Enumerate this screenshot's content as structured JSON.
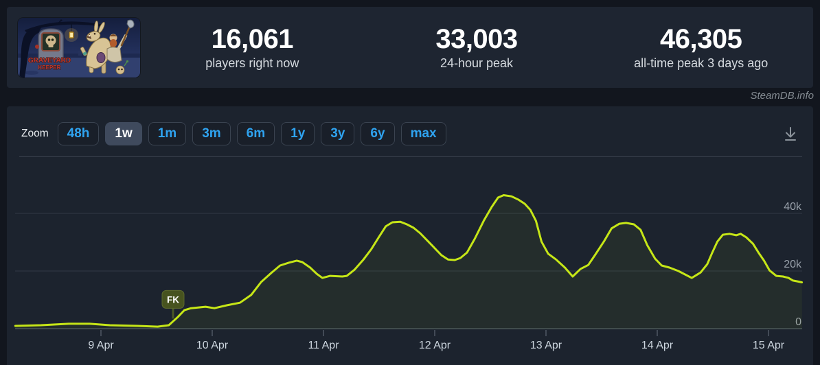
{
  "header": {
    "game": {
      "name": "Graveyard Keeper",
      "logo_lines": [
        "GRAVEYARD",
        "KEEPER"
      ]
    },
    "stats": [
      {
        "value": "16,061",
        "label": "players right now"
      },
      {
        "value": "33,003",
        "label": "24-hour peak"
      },
      {
        "value": "46,305",
        "label": "all-time peak 3 days ago"
      }
    ]
  },
  "watermark": "SteamDB.info",
  "toolbar": {
    "zoom_label": "Zoom",
    "ranges": [
      {
        "label": "48h",
        "active": false
      },
      {
        "label": "1w",
        "active": true
      },
      {
        "label": "1m",
        "active": false
      },
      {
        "label": "3m",
        "active": false
      },
      {
        "label": "6m",
        "active": false
      },
      {
        "label": "1y",
        "active": false
      },
      {
        "label": "3y",
        "active": false
      },
      {
        "label": "6y",
        "active": false
      },
      {
        "label": "max",
        "active": false
      }
    ]
  },
  "chart_data": {
    "type": "area",
    "series_name": "players",
    "title": "",
    "xlabel": "",
    "ylabel": "",
    "line_color": "#c6e617",
    "fill_color": "rgba(198,230,23,0.05)",
    "grid_color": "#323a46",
    "axis_color": "#454e5c",
    "tick_color": "#4e5764",
    "x_label_color": "#cdd6df",
    "y_label_color": "#99a1ab",
    "x_range_days": [
      -0.772,
      6.302
    ],
    "ylim": [
      0,
      57000
    ],
    "x_ticks": [
      {
        "day": 0,
        "label": "9 Apr"
      },
      {
        "day": 1,
        "label": "10 Apr"
      },
      {
        "day": 2,
        "label": "11 Apr"
      },
      {
        "day": 3,
        "label": "12 Apr"
      },
      {
        "day": 4,
        "label": "13 Apr"
      },
      {
        "day": 5,
        "label": "14 Apr"
      },
      {
        "day": 6,
        "label": "15 Apr"
      }
    ],
    "y_gridlines": [
      {
        "value": 0,
        "label": "0"
      },
      {
        "value": 20000,
        "label": "20k"
      },
      {
        "value": 40000,
        "label": "40k"
      }
    ],
    "flags": [
      {
        "day": 0.648,
        "label": "FK",
        "box_color": "#47531f",
        "stem_color": "#4b5826"
      }
    ],
    "points": [
      [
        -0.77,
        950
      ],
      [
        -0.54,
        1200
      ],
      [
        -0.29,
        1700
      ],
      [
        -0.1,
        1700
      ],
      [
        0.08,
        1200
      ],
      [
        0.33,
        950
      ],
      [
        0.51,
        700
      ],
      [
        0.61,
        1200
      ],
      [
        0.69,
        4000
      ],
      [
        0.75,
        6400
      ],
      [
        0.81,
        7100
      ],
      [
        0.94,
        7600
      ],
      [
        1.02,
        7100
      ],
      [
        1.13,
        8100
      ],
      [
        1.25,
        9000
      ],
      [
        1.35,
        11700
      ],
      [
        1.44,
        16200
      ],
      [
        1.53,
        19300
      ],
      [
        1.61,
        21900
      ],
      [
        1.69,
        22900
      ],
      [
        1.76,
        23600
      ],
      [
        1.81,
        23100
      ],
      [
        1.88,
        21200
      ],
      [
        1.94,
        19000
      ],
      [
        1.99,
        17600
      ],
      [
        2.06,
        18300
      ],
      [
        2.17,
        18100
      ],
      [
        2.21,
        18300
      ],
      [
        2.28,
        20500
      ],
      [
        2.36,
        24000
      ],
      [
        2.43,
        27600
      ],
      [
        2.5,
        31900
      ],
      [
        2.56,
        35500
      ],
      [
        2.62,
        36900
      ],
      [
        2.69,
        37100
      ],
      [
        2.75,
        36200
      ],
      [
        2.81,
        35000
      ],
      [
        2.87,
        33100
      ],
      [
        2.93,
        30700
      ],
      [
        2.99,
        28300
      ],
      [
        3.06,
        25500
      ],
      [
        3.12,
        24000
      ],
      [
        3.18,
        23800
      ],
      [
        3.23,
        24500
      ],
      [
        3.29,
        26400
      ],
      [
        3.36,
        31200
      ],
      [
        3.44,
        37400
      ],
      [
        3.51,
        42100
      ],
      [
        3.57,
        45500
      ],
      [
        3.62,
        46305
      ],
      [
        3.69,
        45900
      ],
      [
        3.75,
        44800
      ],
      [
        3.81,
        43300
      ],
      [
        3.86,
        41200
      ],
      [
        3.91,
        37400
      ],
      [
        3.96,
        30200
      ],
      [
        4.02,
        26000
      ],
      [
        4.09,
        24000
      ],
      [
        4.17,
        21200
      ],
      [
        4.24,
        18100
      ],
      [
        4.31,
        20700
      ],
      [
        4.38,
        22100
      ],
      [
        4.44,
        25500
      ],
      [
        4.52,
        30200
      ],
      [
        4.59,
        34800
      ],
      [
        4.66,
        36400
      ],
      [
        4.72,
        36700
      ],
      [
        4.79,
        36200
      ],
      [
        4.85,
        34300
      ],
      [
        4.91,
        29000
      ],
      [
        4.98,
        24300
      ],
      [
        5.04,
        21900
      ],
      [
        5.11,
        21200
      ],
      [
        5.19,
        20000
      ],
      [
        5.25,
        18800
      ],
      [
        5.31,
        17600
      ],
      [
        5.39,
        19500
      ],
      [
        5.45,
        22400
      ],
      [
        5.49,
        26000
      ],
      [
        5.54,
        30200
      ],
      [
        5.59,
        32600
      ],
      [
        5.65,
        32900
      ],
      [
        5.71,
        32400
      ],
      [
        5.75,
        32900
      ],
      [
        5.8,
        31700
      ],
      [
        5.86,
        29500
      ],
      [
        5.91,
        26400
      ],
      [
        5.96,
        23600
      ],
      [
        6.01,
        20200
      ],
      [
        6.07,
        18300
      ],
      [
        6.13,
        18100
      ],
      [
        6.18,
        17600
      ],
      [
        6.22,
        16700
      ],
      [
        6.26,
        16400
      ],
      [
        6.3,
        16061
      ]
    ]
  }
}
